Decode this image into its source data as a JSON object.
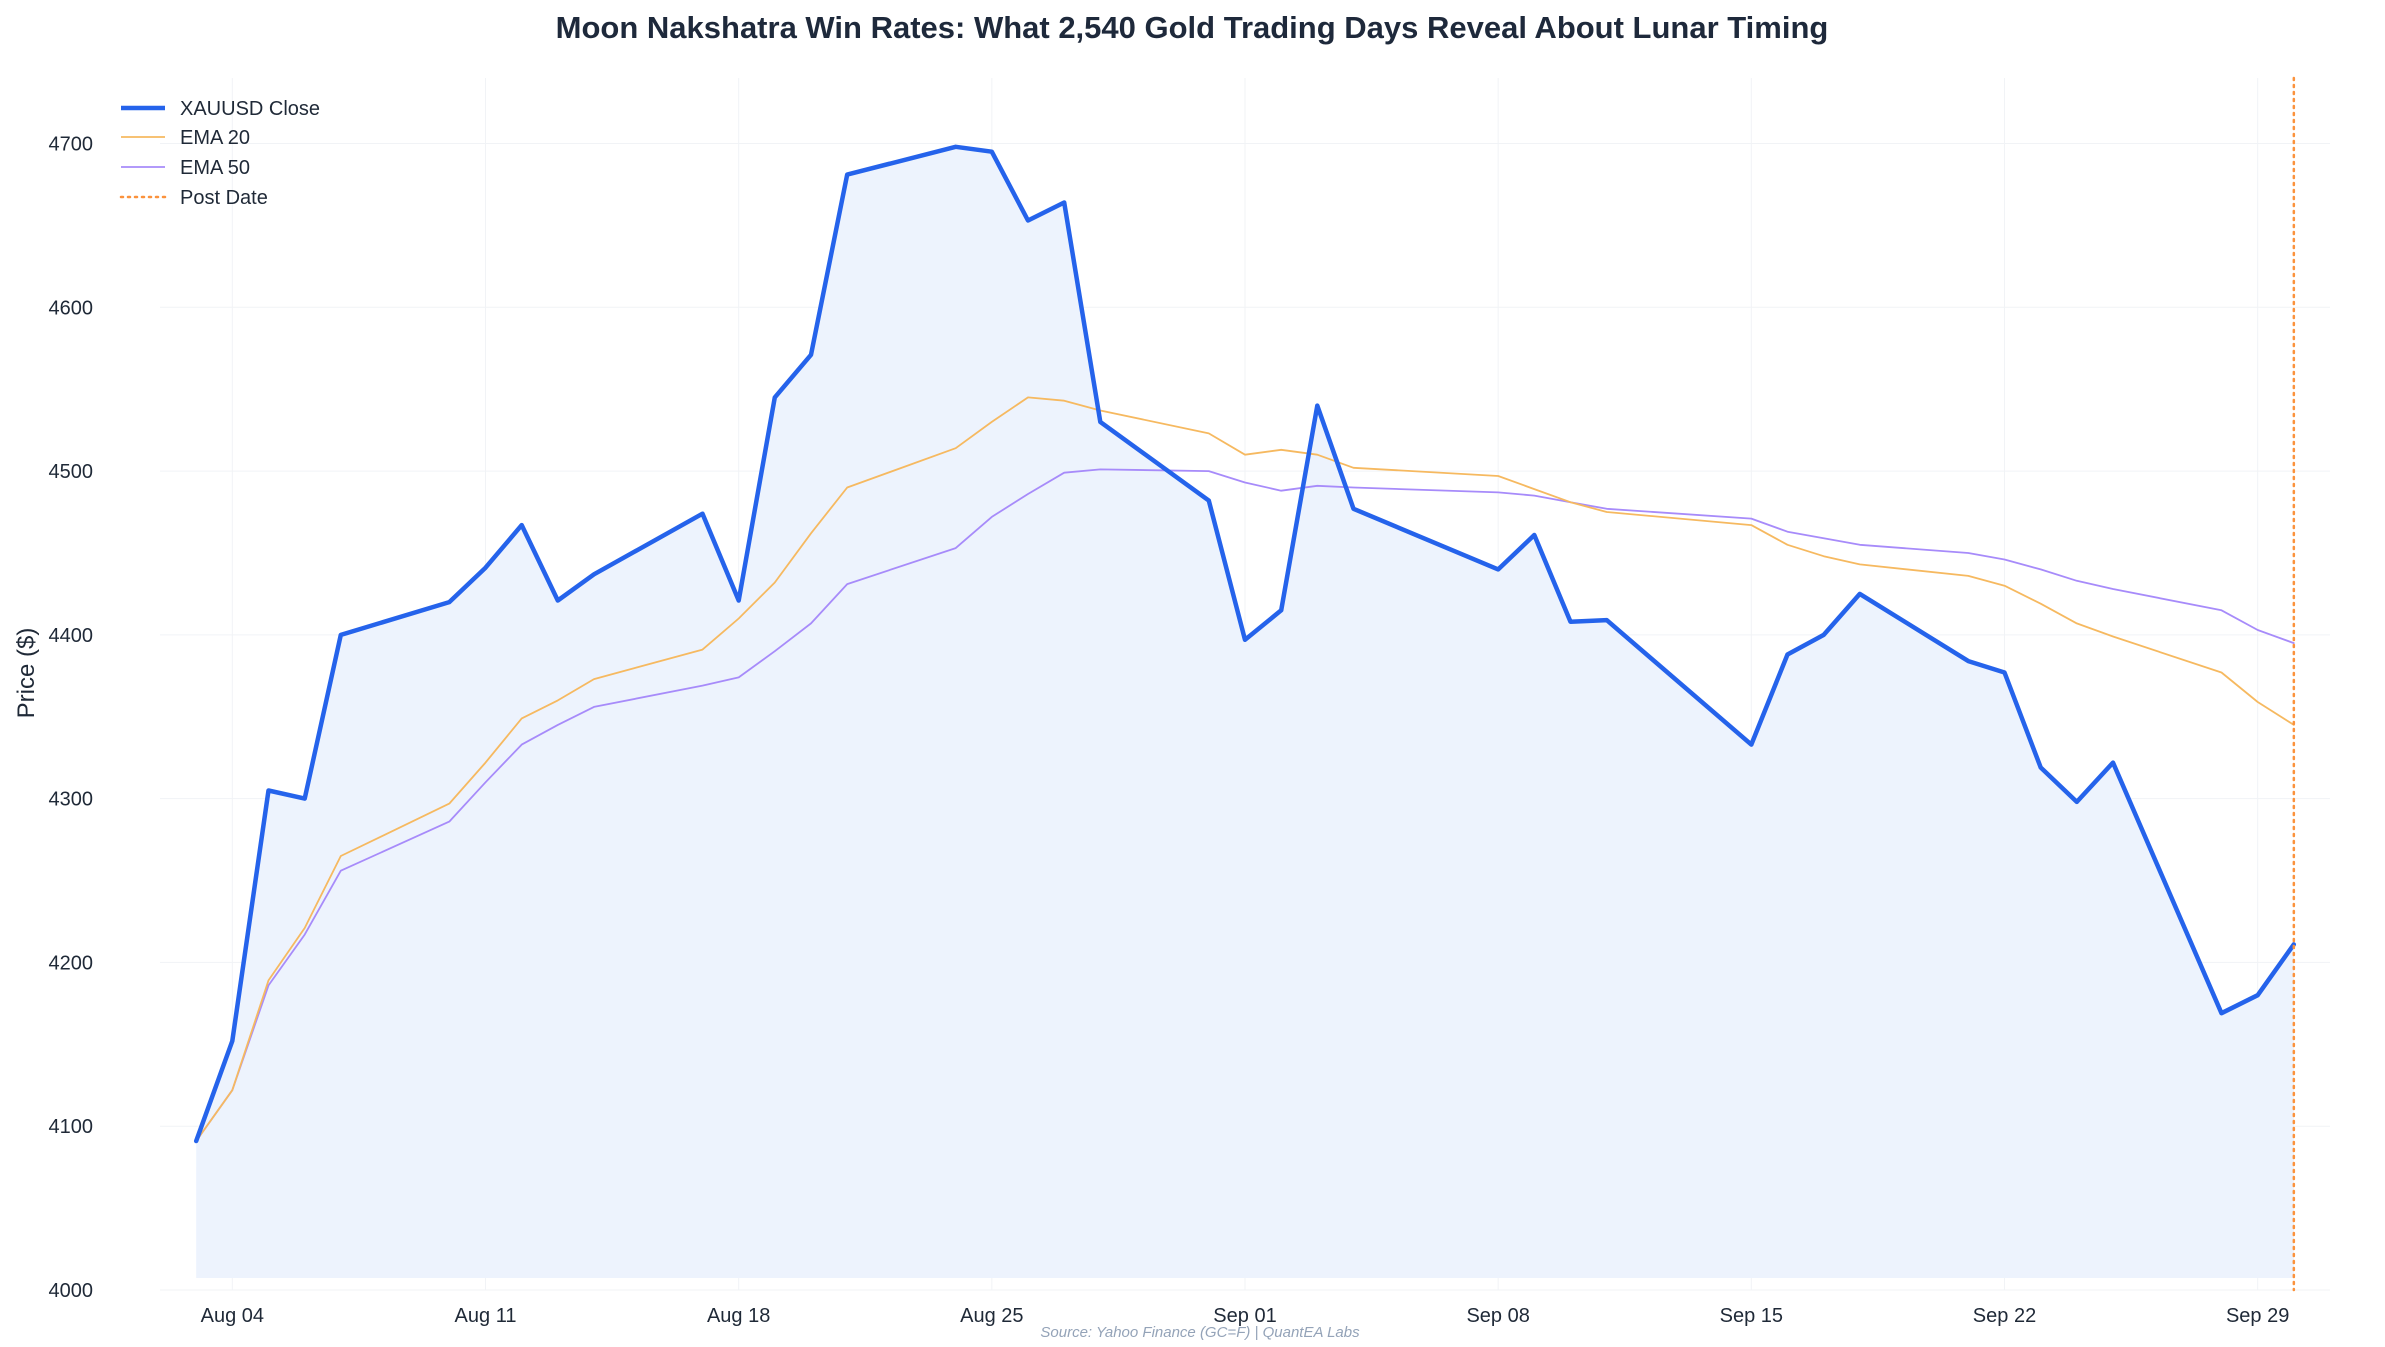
{
  "chart_data": {
    "type": "line",
    "title": "Moon Nakshatra Win Rates: What 2,540 Gold Trading Days Reveal About Lunar Timing",
    "xlabel": "",
    "ylabel": "Price ($)",
    "source": "Source: Yahoo Finance (GC=F) | QuantEA Labs",
    "ylim": [
      4000,
      4740
    ],
    "yticks": [
      4000,
      4100,
      4200,
      4300,
      4400,
      4500,
      4600,
      4700
    ],
    "xticks": [
      {
        "date": "2025-08-04",
        "label": "Aug 04"
      },
      {
        "date": "2025-08-11",
        "label": "Aug 11"
      },
      {
        "date": "2025-08-18",
        "label": "Aug 18"
      },
      {
        "date": "2025-08-25",
        "label": "Aug 25"
      },
      {
        "date": "2025-09-01",
        "label": "Sep 01"
      },
      {
        "date": "2025-09-08",
        "label": "Sep 08"
      },
      {
        "date": "2025-09-15",
        "label": "Sep 15"
      },
      {
        "date": "2025-09-22",
        "label": "Sep 22"
      },
      {
        "date": "2025-09-29",
        "label": "Sep 29"
      }
    ],
    "xlim": [
      "2025-08-02",
      "2025-10-01"
    ],
    "grid": true,
    "legend_position": "top-left",
    "dates": [
      "2025-08-03",
      "2025-08-04",
      "2025-08-05",
      "2025-08-06",
      "2025-08-07",
      "2025-08-10",
      "2025-08-11",
      "2025-08-12",
      "2025-08-13",
      "2025-08-14",
      "2025-08-17",
      "2025-08-18",
      "2025-08-19",
      "2025-08-20",
      "2025-08-21",
      "2025-08-24",
      "2025-08-25",
      "2025-08-26",
      "2025-08-27",
      "2025-08-28",
      "2025-08-31",
      "2025-09-01",
      "2025-09-02",
      "2025-09-03",
      "2025-09-04",
      "2025-09-08",
      "2025-09-09",
      "2025-09-10",
      "2025-09-11",
      "2025-09-15",
      "2025-09-16",
      "2025-09-17",
      "2025-09-18",
      "2025-09-21",
      "2025-09-22",
      "2025-09-23",
      "2025-09-24",
      "2025-09-25",
      "2025-09-28",
      "2025-09-29",
      "2025-09-30"
    ],
    "series": [
      {
        "name": "XAUUSD Close",
        "color": "#2563eb",
        "style": "solid-thick",
        "fill": "#edf3fd",
        "values": [
          4091,
          4152,
          4305,
          4300,
          4400,
          4420,
          4441,
          4467,
          4421,
          4437,
          4474,
          4421,
          4545,
          4571,
          4681,
          4698,
          4695,
          4653,
          4664,
          4530,
          4482,
          4397,
          4415,
          4540,
          4477,
          4440,
          4461,
          4408,
          4409,
          4333,
          4388,
          4400,
          4425,
          4384,
          4377,
          4319,
          4298,
          4322,
          4169,
          4180,
          4211
        ]
      },
      {
        "name": "EMA 20",
        "color": "#f6b960",
        "style": "solid-thin",
        "values": [
          4091,
          4122,
          4189,
          4221,
          4265,
          4297,
          4322,
          4349,
          4360,
          4373,
          4391,
          4410,
          4432,
          4462,
          4490,
          4514,
          4530,
          4545,
          4543,
          4537,
          4523,
          4510,
          4513,
          4510,
          4502,
          4497,
          4489,
          4481,
          4475,
          4467,
          4455,
          4448,
          4443,
          4436,
          4430,
          4419,
          4407,
          4399,
          4377,
          4359,
          4345
        ]
      },
      {
        "name": "EMA 50",
        "color": "#a78bfa",
        "style": "solid-thin",
        "values": [
          4091,
          4122,
          4186,
          4217,
          4256,
          4286,
          4310,
          4333,
          4345,
          4356,
          4369,
          4374,
          4390,
          4407,
          4431,
          4453,
          4472,
          4486,
          4499,
          4501,
          4500,
          4493,
          4488,
          4491,
          4490,
          4487,
          4485,
          4481,
          4477,
          4471,
          4463,
          4459,
          4455,
          4450,
          4446,
          4440,
          4433,
          4428,
          4415,
          4403,
          4395
        ]
      }
    ],
    "post_date": {
      "name": "Post Date",
      "date": "2025-09-30",
      "color": "#fb923c",
      "style": "dotted"
    }
  }
}
